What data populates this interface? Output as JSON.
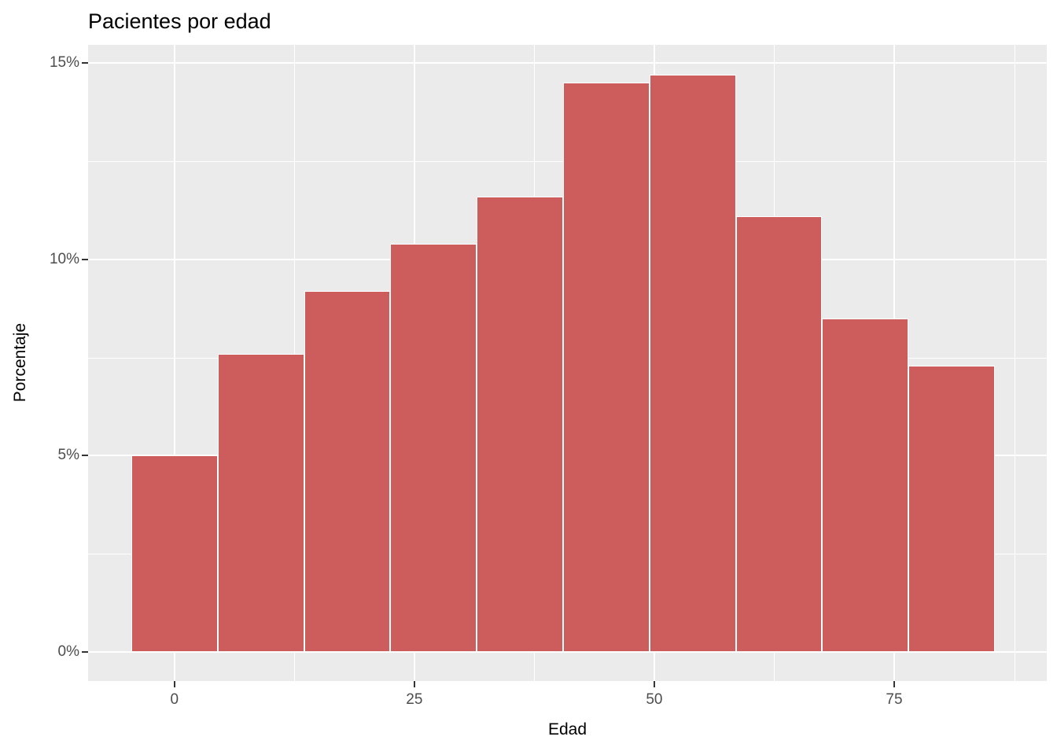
{
  "chart_data": {
    "type": "bar",
    "subtype": "histogram",
    "title": "Pacientes por edad",
    "xlabel": "Edad",
    "ylabel": "Porcentaje",
    "bar_fill_color": "#CD5C5C",
    "bar_border_color": "#FFFFFF",
    "panel_background": "#EBEBEB",
    "gridline_color": "#FFFFFF",
    "grid": "on",
    "legend": "none",
    "binwidth": 9,
    "bin_centers": [
      0,
      9,
      18,
      27,
      36,
      45,
      54,
      63,
      72,
      81
    ],
    "values": [
      5.0,
      7.6,
      9.2,
      10.4,
      11.6,
      14.5,
      14.7,
      11.1,
      8.5,
      7.3
    ],
    "value_unit": "%",
    "x_ticks": [
      {
        "value": 0,
        "label": "0"
      },
      {
        "value": 25,
        "label": "25"
      },
      {
        "value": 50,
        "label": "50"
      },
      {
        "value": 75,
        "label": "75"
      }
    ],
    "y_ticks": [
      {
        "value": 0,
        "label": "0%"
      },
      {
        "value": 5,
        "label": "5%"
      },
      {
        "value": 10,
        "label": "10%"
      },
      {
        "value": 15,
        "label": "15%"
      }
    ],
    "x_minor_gridlines": [
      12.5,
      37.5,
      62.5,
      87.5
    ],
    "y_minor_gridlines": [
      2.5,
      7.5,
      12.5
    ],
    "xlim": [
      -9,
      90.9
    ],
    "ylim": [
      -0.74,
      15.46
    ]
  }
}
